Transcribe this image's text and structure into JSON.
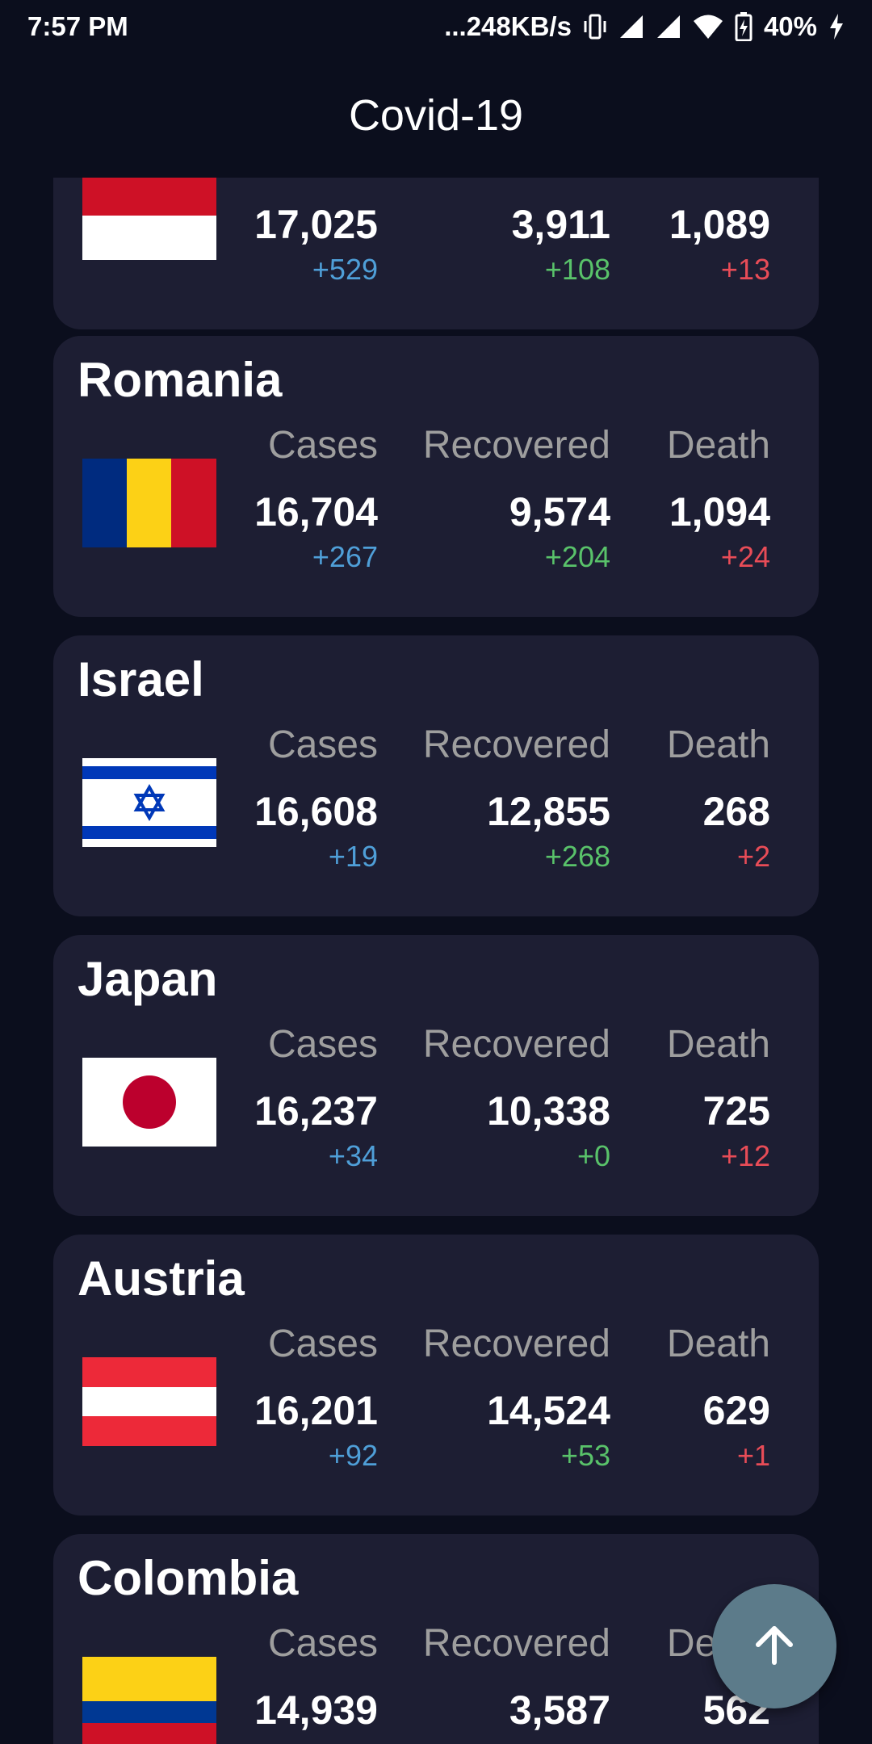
{
  "status_bar": {
    "time": "7:57 PM",
    "network_speed": "...248KB/s",
    "battery": "40%"
  },
  "app_bar": {
    "title": "Covid-19"
  },
  "labels": {
    "cases": "Cases",
    "recovered": "Recovered",
    "death": "Death"
  },
  "cards": [
    {
      "country": "",
      "flag": "indonesia-flag",
      "cases": "17,025",
      "cases_delta": "+529",
      "recovered": "3,911",
      "recovered_delta": "+108",
      "death": "1,089",
      "death_delta": "+13"
    },
    {
      "country": "Romania",
      "flag": "romania-flag",
      "cases": "16,704",
      "cases_delta": "+267",
      "recovered": "9,574",
      "recovered_delta": "+204",
      "death": "1,094",
      "death_delta": "+24"
    },
    {
      "country": "Israel",
      "flag": "israel-flag",
      "cases": "16,608",
      "cases_delta": "+19",
      "recovered": "12,855",
      "recovered_delta": "+268",
      "death": "268",
      "death_delta": "+2"
    },
    {
      "country": "Japan",
      "flag": "japan-flag",
      "cases": "16,237",
      "cases_delta": "+34",
      "recovered": "10,338",
      "recovered_delta": "+0",
      "death": "725",
      "death_delta": "+12"
    },
    {
      "country": "Austria",
      "flag": "austria-flag",
      "cases": "16,201",
      "cases_delta": "+92",
      "recovered": "14,524",
      "recovered_delta": "+53",
      "death": "629",
      "death_delta": "+1"
    },
    {
      "country": "Colombia",
      "flag": "colombia-flag",
      "cases": "14,939",
      "cases_delta": "",
      "recovered": "3,587",
      "recovered_delta": "",
      "death": "562",
      "death_delta": ""
    }
  ],
  "colors": {
    "background": "#0b0e1d",
    "card": "#1d1e33",
    "cases_delta": "#4f9fd8",
    "recovered_delta": "#59c26a",
    "death_delta": "#e84c57",
    "fab": "#5c7b8a"
  },
  "fab": {
    "icon": "arrow-up-icon"
  }
}
